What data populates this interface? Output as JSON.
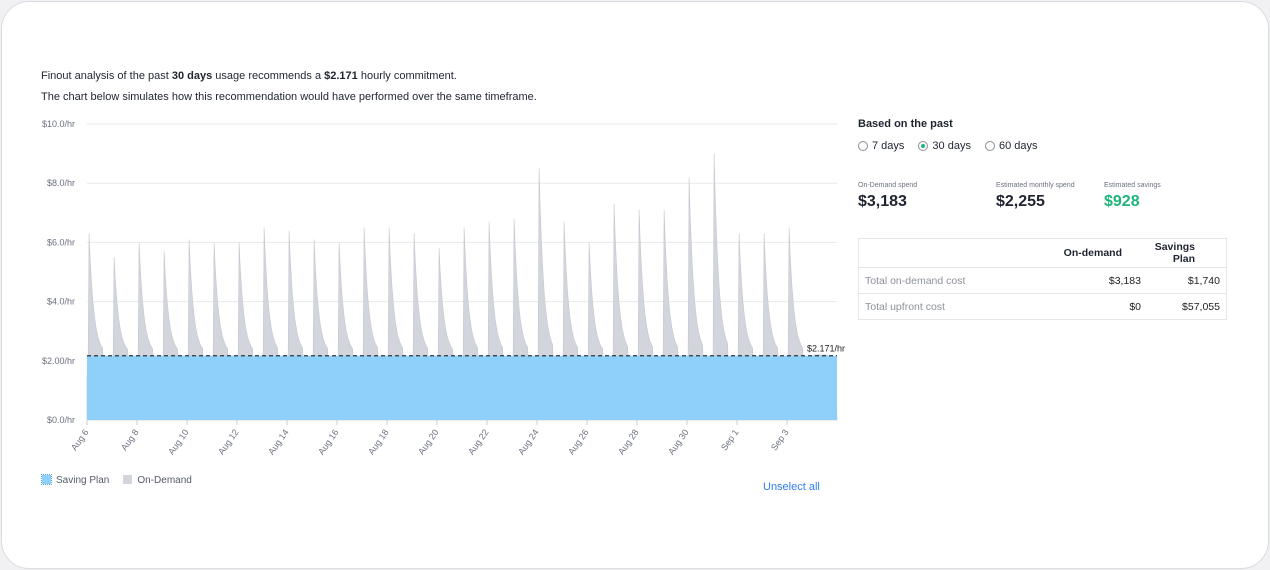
{
  "intro": {
    "line1_pre": "Finout analysis of the past ",
    "line1_days": "30 days",
    "line1_mid": " usage recommends a ",
    "line1_amount": "$2.171",
    "line1_post": " hourly commitment.",
    "line2": "The chart below simulates how this recommendation would have performed over the same timeframe."
  },
  "chart_data": {
    "type": "area",
    "ylim": [
      0,
      10
    ],
    "y_ticks": [
      "$0.0/hr",
      "$2.00/hr",
      "$4.0/hr",
      "$6.0/hr",
      "$8.0/hr",
      "$10.0/hr"
    ],
    "y_tick_values": [
      0,
      2,
      4,
      6,
      8,
      10
    ],
    "x_ticks": [
      "Aug 6",
      "Aug 8",
      "Aug 10",
      "Aug 12",
      "Aug 14",
      "Aug 16",
      "Aug 18",
      "Aug 20",
      "Aug 22",
      "Aug 24",
      "Aug 26",
      "Aug 28",
      "Aug 30",
      "Sep 1",
      "Sep 3"
    ],
    "days": [
      "Aug 6",
      "Aug 7",
      "Aug 8",
      "Aug 9",
      "Aug 10",
      "Aug 11",
      "Aug 12",
      "Aug 13",
      "Aug 14",
      "Aug 15",
      "Aug 16",
      "Aug 17",
      "Aug 18",
      "Aug 19",
      "Aug 20",
      "Aug 21",
      "Aug 22",
      "Aug 23",
      "Aug 24",
      "Aug 25",
      "Aug 26",
      "Aug 27",
      "Aug 28",
      "Aug 29",
      "Aug 30",
      "Aug 31",
      "Sep 1",
      "Sep 2",
      "Sep 3",
      "Sep 4"
    ],
    "series": [
      {
        "name": "On-Demand",
        "color": "#d2d5dc",
        "daily_peak": [
          6.3,
          5.5,
          6.0,
          5.7,
          6.1,
          6.0,
          6.0,
          6.5,
          6.4,
          6.1,
          6.0,
          6.5,
          6.5,
          6.3,
          5.8,
          6.5,
          6.7,
          6.8,
          8.5,
          6.7,
          6.0,
          7.3,
          7.1,
          7.1,
          8.2,
          9.0,
          6.3,
          6.3,
          6.5,
          2.2
        ]
      },
      {
        "name": "Saving Plan",
        "color": "#8fd0fb",
        "value": 2.171
      }
    ],
    "commitment_label": "$2.171/hr",
    "grid": true,
    "legend": "bottom-left",
    "unselect_label": "Unselect all"
  },
  "side": {
    "title": "Based on the past",
    "options": [
      {
        "label": "7 days",
        "selected": false
      },
      {
        "label": "30 days",
        "selected": true
      },
      {
        "label": "60 days",
        "selected": false
      }
    ],
    "stats": [
      {
        "label": "On-Demand spend",
        "value": "$3,183"
      },
      {
        "label": "Estimated monthly spend",
        "value": "$2,255"
      },
      {
        "label": "Estimated savings",
        "value": "$928",
        "color": "#1fb57a"
      }
    ],
    "table": {
      "headers": [
        "",
        "On-demand",
        "Savings Plan"
      ],
      "rows": [
        [
          "Total on-demand cost",
          "$3,183",
          "$1,740"
        ],
        [
          "Total upfront cost",
          "$0",
          "$57,055"
        ]
      ]
    }
  }
}
